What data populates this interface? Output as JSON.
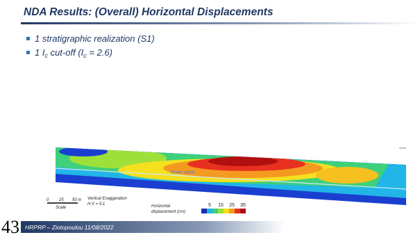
{
  "header": {
    "title": "NDA Results: (Overall) Horizontal Displacements"
  },
  "bullets": [
    {
      "parts": [
        "1 stratigraphic realization (S1)"
      ]
    },
    {
      "parts": [
        "1 I",
        "c",
        " cut-off (I",
        "c",
        " = 2.6)"
      ]
    }
  ],
  "figure": {
    "water_table": "Water table",
    "scale": {
      "ticks": [
        "0",
        "25",
        "50 m"
      ],
      "label": "Scale"
    },
    "exaggeration": [
      "Vertical Exaggeration",
      "H:V = 5:1"
    ],
    "legend": {
      "title": [
        "Horizontal",
        "displacement (cm)"
      ],
      "ticks": [
        5,
        15,
        25,
        35
      ]
    }
  },
  "footer": {
    "page": "43",
    "text": "HRPRP – Ziotopoulou 11/08/2022"
  }
}
